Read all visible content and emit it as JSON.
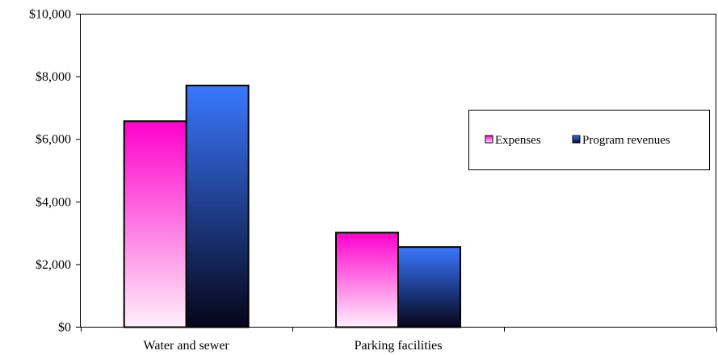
{
  "chart_data": {
    "type": "bar",
    "title": "",
    "xlabel": "",
    "ylabel": "",
    "categories": [
      "Water and sewer",
      "Parking facilities"
    ],
    "series": [
      {
        "name": "Expenses",
        "values": [
          6580,
          3020
        ],
        "color_top": "#ff00cc",
        "color_bottom": "#fff0fb"
      },
      {
        "name": "Program revenues",
        "values": [
          7720,
          2560
        ],
        "color_top": "#3a78ff",
        "color_bottom": "#050518"
      }
    ],
    "ylim": [
      0,
      10000
    ],
    "yticks": [
      0,
      2000,
      4000,
      6000,
      8000,
      10000
    ],
    "ytick_labels": [
      "$0",
      "$2,000",
      "$4,000",
      "$6,000",
      "$8,000",
      "$10,000"
    ],
    "grid": false,
    "legend_position": "right"
  }
}
